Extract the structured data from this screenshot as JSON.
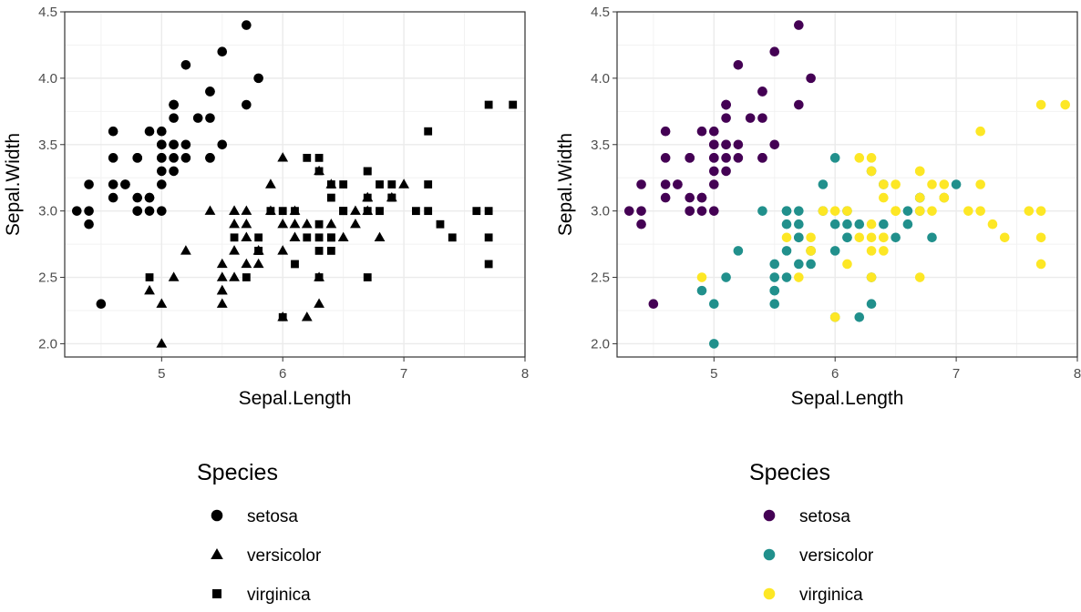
{
  "chart_data": [
    {
      "type": "scatter",
      "encoding": "shape",
      "xlabel": "Sepal.Length",
      "ylabel": "Sepal.Width",
      "xlim": [
        4.2,
        8.0
      ],
      "ylim": [
        1.9,
        4.5
      ],
      "xticks": [
        "5",
        "6",
        "7",
        "8"
      ],
      "yticks": [
        "2.0",
        "2.5",
        "3.0",
        "3.5",
        "4.0",
        "4.5"
      ],
      "grid": true,
      "legend": {
        "title": "Species",
        "placement": "bottom",
        "entries": [
          {
            "label": "setosa",
            "shape": "circle"
          },
          {
            "label": "versicolor",
            "shape": "triangle"
          },
          {
            "label": "virginica",
            "shape": "square"
          }
        ]
      },
      "series": [
        {
          "name": "setosa",
          "shape": "circle",
          "x": [
            5.1,
            4.9,
            4.7,
            4.6,
            5.0,
            5.4,
            4.6,
            5.0,
            4.4,
            4.9,
            5.4,
            4.8,
            4.8,
            4.3,
            5.8,
            5.7,
            5.4,
            5.1,
            5.7,
            5.1,
            5.4,
            5.1,
            4.6,
            5.1,
            4.8,
            5.0,
            5.0,
            5.2,
            5.2,
            4.7,
            4.8,
            5.4,
            5.2,
            5.5,
            4.9,
            5.0,
            5.5,
            4.9,
            4.4,
            5.1,
            5.0,
            4.5,
            4.4,
            5.0,
            5.1,
            4.8,
            5.1,
            4.6,
            5.3,
            5.0
          ],
          "y": [
            3.5,
            3.0,
            3.2,
            3.1,
            3.6,
            3.9,
            3.4,
            3.4,
            2.9,
            3.1,
            3.7,
            3.4,
            3.0,
            3.0,
            4.0,
            4.4,
            3.9,
            3.5,
            3.8,
            3.8,
            3.4,
            3.7,
            3.6,
            3.3,
            3.4,
            3.0,
            3.4,
            3.5,
            3.4,
            3.2,
            3.1,
            3.4,
            4.1,
            4.2,
            3.1,
            3.2,
            3.5,
            3.6,
            3.0,
            3.4,
            3.5,
            2.3,
            3.2,
            3.5,
            3.8,
            3.0,
            3.8,
            3.2,
            3.7,
            3.3
          ]
        },
        {
          "name": "versicolor",
          "shape": "triangle",
          "x": [
            7.0,
            6.4,
            6.9,
            5.5,
            6.5,
            5.7,
            6.3,
            4.9,
            6.6,
            5.2,
            5.0,
            5.9,
            6.0,
            6.1,
            5.6,
            6.7,
            5.6,
            5.8,
            6.2,
            5.6,
            5.9,
            6.1,
            6.3,
            6.1,
            6.4,
            6.6,
            6.8,
            6.7,
            6.0,
            5.7,
            5.5,
            5.5,
            5.8,
            6.0,
            5.4,
            6.0,
            6.7,
            6.3,
            5.6,
            5.5,
            5.5,
            6.1,
            5.8,
            5.0,
            5.6,
            5.7,
            5.7,
            6.2,
            5.1,
            5.7
          ],
          "y": [
            3.2,
            3.2,
            3.1,
            2.3,
            2.8,
            2.8,
            3.3,
            2.4,
            2.9,
            2.7,
            2.0,
            3.0,
            2.2,
            2.9,
            2.9,
            3.1,
            3.0,
            2.7,
            2.2,
            2.5,
            3.2,
            2.8,
            2.5,
            2.8,
            2.9,
            3.0,
            2.8,
            3.0,
            2.9,
            2.6,
            2.4,
            2.4,
            2.7,
            2.7,
            3.0,
            3.4,
            3.1,
            2.3,
            3.0,
            2.5,
            2.6,
            3.0,
            2.6,
            2.3,
            2.7,
            3.0,
            2.9,
            2.9,
            2.5,
            2.8
          ]
        },
        {
          "name": "virginica",
          "shape": "square",
          "x": [
            6.3,
            5.8,
            7.1,
            6.3,
            6.5,
            7.6,
            4.9,
            7.3,
            6.7,
            7.2,
            6.5,
            6.4,
            6.8,
            5.7,
            5.8,
            6.4,
            6.5,
            7.7,
            7.7,
            6.0,
            6.9,
            5.6,
            7.7,
            6.3,
            6.7,
            7.2,
            6.2,
            6.1,
            6.4,
            7.2,
            7.4,
            7.9,
            6.4,
            6.3,
            6.1,
            7.7,
            6.3,
            6.4,
            6.0,
            6.9,
            6.7,
            6.9,
            5.8,
            6.8,
            6.7,
            6.7,
            6.3,
            6.5,
            6.2,
            5.9
          ],
          "y": [
            3.3,
            2.7,
            3.0,
            2.9,
            3.0,
            3.0,
            2.5,
            2.9,
            2.5,
            3.6,
            3.2,
            2.7,
            3.0,
            2.5,
            2.8,
            3.2,
            3.0,
            3.8,
            2.6,
            2.2,
            3.2,
            2.8,
            2.8,
            2.7,
            3.3,
            3.2,
            2.8,
            3.0,
            2.8,
            3.0,
            2.8,
            3.8,
            2.8,
            2.8,
            2.6,
            3.0,
            3.4,
            3.1,
            3.0,
            3.1,
            3.1,
            3.1,
            2.7,
            3.2,
            3.3,
            3.0,
            2.5,
            3.0,
            3.4,
            3.0
          ]
        }
      ]
    },
    {
      "type": "scatter",
      "encoding": "color",
      "xlabel": "Sepal.Length",
      "ylabel": "Sepal.Width",
      "xlim": [
        4.2,
        8.0
      ],
      "ylim": [
        1.9,
        4.5
      ],
      "xticks": [
        "5",
        "6",
        "7",
        "8"
      ],
      "yticks": [
        "2.0",
        "2.5",
        "3.0",
        "3.5",
        "4.0",
        "4.5"
      ],
      "grid": true,
      "legend": {
        "title": "Species",
        "placement": "bottom",
        "entries": [
          {
            "label": "setosa",
            "color": "#440154"
          },
          {
            "label": "versicolor",
            "color": "#21908C"
          },
          {
            "label": "virginica",
            "color": "#FDE725"
          }
        ]
      },
      "series": [
        {
          "name": "setosa",
          "color": "#440154"
        },
        {
          "name": "versicolor",
          "color": "#21908C"
        },
        {
          "name": "virginica",
          "color": "#FDE725"
        }
      ],
      "same_points_as_panel": 1
    }
  ]
}
